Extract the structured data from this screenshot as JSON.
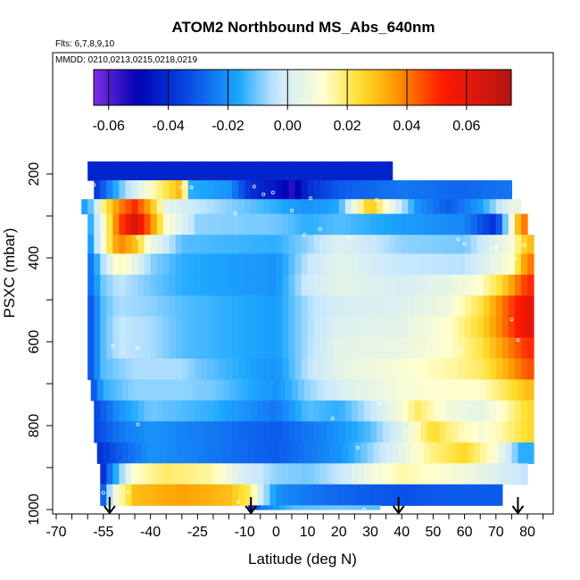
{
  "chart_data": {
    "type": "heatmap",
    "title": "ATOM2 Northbound MS_Abs_640nm",
    "subtitle_flights": "Flts: 6,7,8,9,10",
    "subtitle_dates": "MMDD: 0210,0213,0215,0218,0219",
    "xlabel": "Latitude (deg N)",
    "ylabel": "PSXC (mbar)",
    "x_ticks": [
      "-70",
      "-55",
      "-40",
      "-25",
      "-10",
      "0",
      "10",
      "20",
      "30",
      "40",
      "50",
      "60",
      "70",
      "80"
    ],
    "x_tick_values": [
      -70,
      -55,
      -40,
      -25,
      -10,
      0,
      10,
      20,
      30,
      40,
      50,
      60,
      70,
      80
    ],
    "y_ticks": [
      "200",
      "400",
      "600",
      "800",
      "1000"
    ],
    "y_tick_values": [
      200,
      400,
      600,
      800,
      1000
    ],
    "xlim": [
      -70,
      90
    ],
    "ylim": [
      1000,
      0
    ],
    "colorbar": {
      "range": [
        -0.065,
        0.075
      ],
      "tick_labels": [
        "-0.06",
        "-0.04",
        "-0.02",
        "0.00",
        "0.02",
        "0.04",
        "0.06"
      ],
      "tick_values": [
        -0.06,
        -0.04,
        -0.02,
        0.0,
        0.02,
        0.04,
        0.06
      ],
      "colors": [
        "#7b2ee0",
        "#0000b4",
        "#0a50e8",
        "#1ea8ff",
        "#c8e8ff",
        "#ffffd0",
        "#ffe030",
        "#ff9a00",
        "#ff1a00",
        "#b41414"
      ]
    },
    "layers": [
      {
        "p": [
          170,
          215
        ],
        "x": [
          -60,
          37
        ],
        "v": [
          [
            -60,
            -0.042
          ],
          [
            37,
            -0.042
          ]
        ]
      },
      {
        "p": [
          215,
          260
        ],
        "x": [
          -58,
          75
        ],
        "v": [
          [
            -58,
            -0.04
          ],
          [
            -50,
            -0.012
          ],
          [
            -40,
            0.012
          ],
          [
            -30,
            0.032
          ],
          [
            -27,
            -0.015
          ],
          [
            -15,
            -0.02
          ],
          [
            -8,
            -0.04
          ],
          [
            0,
            -0.045
          ],
          [
            5,
            -0.055
          ],
          [
            10,
            -0.04
          ],
          [
            20,
            -0.03
          ],
          [
            40,
            -0.025
          ],
          [
            60,
            -0.028
          ],
          [
            75,
            -0.025
          ]
        ]
      },
      {
        "p": [
          260,
          295
        ],
        "x": [
          -62,
          78
        ],
        "v": [
          [
            -62,
            -0.02
          ],
          [
            -58,
            -0.008
          ],
          [
            -55,
            0.018
          ],
          [
            -50,
            0.038
          ],
          [
            -45,
            0.05
          ],
          [
            -40,
            0.032
          ],
          [
            -35,
            0.005
          ],
          [
            -25,
            -0.004
          ],
          [
            0,
            -0.015
          ],
          [
            10,
            -0.02
          ],
          [
            20,
            -0.016
          ],
          [
            30,
            0.03
          ],
          [
            35,
            0.012
          ],
          [
            45,
            -0.02
          ],
          [
            55,
            -0.03
          ],
          [
            65,
            -0.018
          ],
          [
            75,
            0.005
          ],
          [
            78,
            0.005
          ]
        ]
      },
      {
        "p": [
          295,
          345
        ],
        "x": [
          -60,
          80
        ],
        "v": [
          [
            -60,
            -0.02
          ],
          [
            -55,
            0.008
          ],
          [
            -50,
            0.045
          ],
          [
            -45,
            0.065
          ],
          [
            -40,
            0.04
          ],
          [
            -35,
            0.012
          ],
          [
            -25,
            -0.008
          ],
          [
            0,
            -0.01
          ],
          [
            10,
            -0.015
          ],
          [
            20,
            -0.012
          ],
          [
            40,
            -0.018
          ],
          [
            60,
            -0.022
          ],
          [
            70,
            -0.04
          ],
          [
            78,
            0.04
          ]
        ]
      },
      {
        "p": [
          345,
          390
        ],
        "x": [
          -60,
          82
        ],
        "v": [
          [
            -60,
            -0.025
          ],
          [
            -55,
            0.01
          ],
          [
            -50,
            0.04
          ],
          [
            -45,
            0.03
          ],
          [
            -40,
            0.008
          ],
          [
            -30,
            -0.012
          ],
          [
            0,
            -0.015
          ],
          [
            10,
            -0.008
          ],
          [
            20,
            0.002
          ],
          [
            40,
            -0.008
          ],
          [
            60,
            -0.01
          ],
          [
            75,
            0.01
          ],
          [
            80,
            0.03
          ],
          [
            82,
            0.03
          ]
        ]
      },
      {
        "p": [
          390,
          440
        ],
        "x": [
          -60,
          82
        ],
        "v": [
          [
            -60,
            -0.03
          ],
          [
            -55,
            -0.005
          ],
          [
            -50,
            0.015
          ],
          [
            -45,
            0.005
          ],
          [
            -40,
            -0.008
          ],
          [
            -30,
            -0.015
          ],
          [
            0,
            -0.02
          ],
          [
            10,
            -0.004
          ],
          [
            20,
            0.004
          ],
          [
            40,
            -0.004
          ],
          [
            60,
            -0.005
          ],
          [
            75,
            0.012
          ],
          [
            80,
            0.04
          ],
          [
            82,
            0.04
          ]
        ]
      },
      {
        "p": [
          440,
          490
        ],
        "x": [
          -60,
          82
        ],
        "v": [
          [
            -60,
            -0.03
          ],
          [
            -55,
            -0.01
          ],
          [
            -50,
            -0.004
          ],
          [
            -40,
            -0.01
          ],
          [
            -30,
            -0.015
          ],
          [
            0,
            -0.02
          ],
          [
            10,
            -0.002
          ],
          [
            20,
            0.004
          ],
          [
            40,
            0.0
          ],
          [
            55,
            0.005
          ],
          [
            65,
            0.012
          ],
          [
            72,
            0.025
          ],
          [
            80,
            0.05
          ],
          [
            82,
            0.05
          ]
        ]
      },
      {
        "p": [
          490,
          540
        ],
        "x": [
          -60,
          82
        ],
        "v": [
          [
            -60,
            -0.035
          ],
          [
            -55,
            -0.012
          ],
          [
            -50,
            -0.006
          ],
          [
            -40,
            -0.008
          ],
          [
            -30,
            -0.012
          ],
          [
            0,
            -0.018
          ],
          [
            10,
            -0.006
          ],
          [
            20,
            0.0
          ],
          [
            40,
            0.002
          ],
          [
            55,
            0.008
          ],
          [
            65,
            0.022
          ],
          [
            72,
            0.04
          ],
          [
            80,
            0.06
          ],
          [
            82,
            0.06
          ]
        ]
      },
      {
        "p": [
          540,
          590
        ],
        "x": [
          -60,
          82
        ],
        "v": [
          [
            -60,
            -0.035
          ],
          [
            -55,
            -0.012
          ],
          [
            -50,
            -0.004
          ],
          [
            -40,
            -0.006
          ],
          [
            -30,
            -0.012
          ],
          [
            0,
            -0.018
          ],
          [
            10,
            -0.006
          ],
          [
            20,
            0.002
          ],
          [
            40,
            0.004
          ],
          [
            55,
            0.012
          ],
          [
            65,
            0.025
          ],
          [
            72,
            0.04
          ],
          [
            80,
            0.06
          ],
          [
            82,
            0.06
          ]
        ]
      },
      {
        "p": [
          590,
          640
        ],
        "x": [
          -60,
          82
        ],
        "v": [
          [
            -60,
            -0.035
          ],
          [
            -55,
            -0.012
          ],
          [
            -50,
            -0.004
          ],
          [
            -40,
            -0.006
          ],
          [
            -30,
            -0.012
          ],
          [
            0,
            -0.018
          ],
          [
            10,
            -0.006
          ],
          [
            20,
            0.004
          ],
          [
            40,
            0.006
          ],
          [
            55,
            0.012
          ],
          [
            65,
            0.022
          ],
          [
            72,
            0.035
          ],
          [
            80,
            0.05
          ],
          [
            82,
            0.05
          ]
        ]
      },
      {
        "p": [
          640,
          690
        ],
        "x": [
          -60,
          82
        ],
        "v": [
          [
            -60,
            -0.035
          ],
          [
            -55,
            -0.012
          ],
          [
            -45,
            -0.006
          ],
          [
            -30,
            -0.006
          ],
          [
            -25,
            -0.01
          ],
          [
            0,
            -0.02
          ],
          [
            10,
            -0.005
          ],
          [
            20,
            0.004
          ],
          [
            40,
            0.01
          ],
          [
            55,
            0.015
          ],
          [
            65,
            0.02
          ],
          [
            72,
            0.03
          ],
          [
            80,
            0.045
          ],
          [
            82,
            0.045
          ]
        ]
      },
      {
        "p": [
          690,
          740
        ],
        "x": [
          -59,
          82
        ],
        "v": [
          [
            -59,
            -0.035
          ],
          [
            -55,
            -0.015
          ],
          [
            -45,
            -0.008
          ],
          [
            -30,
            -0.008
          ],
          [
            -20,
            -0.01
          ],
          [
            0,
            -0.02
          ],
          [
            10,
            -0.008
          ],
          [
            20,
            0.0
          ],
          [
            40,
            0.01
          ],
          [
            55,
            0.012
          ],
          [
            65,
            0.012
          ],
          [
            72,
            0.02
          ],
          [
            80,
            0.03
          ],
          [
            82,
            0.03
          ]
        ]
      },
      {
        "p": [
          740,
          790
        ],
        "x": [
          -58,
          82
        ],
        "v": [
          [
            -58,
            -0.035
          ],
          [
            -50,
            -0.02
          ],
          [
            -40,
            -0.01
          ],
          [
            -20,
            -0.015
          ],
          [
            0,
            -0.025
          ],
          [
            10,
            -0.012
          ],
          [
            20,
            -0.015
          ],
          [
            30,
            -0.004
          ],
          [
            40,
            0.01
          ],
          [
            45,
            0.02
          ],
          [
            55,
            0.008
          ],
          [
            65,
            0.005
          ],
          [
            72,
            0.012
          ],
          [
            80,
            0.025
          ],
          [
            82,
            0.025
          ]
        ]
      },
      {
        "p": [
          790,
          840
        ],
        "x": [
          -58,
          82
        ],
        "v": [
          [
            -58,
            -0.035
          ],
          [
            -50,
            -0.025
          ],
          [
            -40,
            -0.02
          ],
          [
            -20,
            -0.025
          ],
          [
            0,
            -0.03
          ],
          [
            10,
            -0.025
          ],
          [
            20,
            -0.02
          ],
          [
            30,
            -0.012
          ],
          [
            40,
            0.002
          ],
          [
            50,
            0.025
          ],
          [
            55,
            0.018
          ],
          [
            65,
            0.01
          ],
          [
            72,
            0.015
          ],
          [
            80,
            0.025
          ],
          [
            82,
            0.025
          ]
        ]
      },
      {
        "p": [
          840,
          890
        ],
        "x": [
          -57,
          82
        ],
        "v": [
          [
            -57,
            -0.04
          ],
          [
            -50,
            -0.03
          ],
          [
            -40,
            -0.02
          ],
          [
            -20,
            -0.025
          ],
          [
            0,
            -0.03
          ],
          [
            10,
            -0.025
          ],
          [
            20,
            -0.02
          ],
          [
            30,
            -0.008
          ],
          [
            40,
            0.005
          ],
          [
            50,
            0.018
          ],
          [
            60,
            0.025
          ],
          [
            70,
            0.01
          ],
          [
            78,
            -0.015
          ],
          [
            82,
            -0.015
          ]
        ]
      },
      {
        "p": [
          890,
          940
        ],
        "x": [
          -56,
          80
        ],
        "v": [
          [
            -56,
            -0.045
          ],
          [
            -52,
            -0.02
          ],
          [
            -45,
            0.012
          ],
          [
            -35,
            0.02
          ],
          [
            -20,
            0.015
          ],
          [
            -10,
            0.0
          ],
          [
            0,
            -0.008
          ],
          [
            10,
            -0.01
          ],
          [
            20,
            -0.004
          ],
          [
            30,
            0.008
          ],
          [
            40,
            0.015
          ],
          [
            50,
            0.012
          ],
          [
            60,
            0.008
          ],
          [
            70,
            0.002
          ],
          [
            80,
            -0.005
          ]
        ]
      },
      {
        "p": [
          940,
          990
        ],
        "x": [
          -56,
          72
        ],
        "v": [
          [
            -56,
            -0.04
          ],
          [
            -52,
            0.005
          ],
          [
            -45,
            0.03
          ],
          [
            -30,
            0.035
          ],
          [
            -15,
            0.03
          ],
          [
            -8,
            0.02
          ],
          [
            -5,
            0.0
          ],
          [
            0,
            -0.02
          ],
          [
            10,
            -0.025
          ],
          [
            20,
            -0.028
          ],
          [
            30,
            -0.03
          ],
          [
            40,
            -0.032
          ],
          [
            55,
            -0.03
          ],
          [
            72,
            -0.03
          ]
        ]
      },
      {
        "p": [
          990,
          1000
        ],
        "x": [
          -9,
          33
        ],
        "v": [
          [
            -9,
            -0.045
          ],
          [
            -5,
            -0.025
          ],
          [
            5,
            -0.012
          ],
          [
            20,
            -0.01
          ],
          [
            33,
            -0.012
          ]
        ]
      }
    ],
    "arrows_lat": [
      -53,
      -8,
      39,
      77
    ],
    "markers": [
      [
        -58,
        226
      ],
      [
        -30,
        231
      ],
      [
        -4,
        248
      ],
      [
        -27,
        232
      ],
      [
        -7,
        230
      ],
      [
        -1,
        244
      ],
      [
        11,
        258
      ],
      [
        32,
        262
      ],
      [
        5,
        287
      ],
      [
        -13,
        294
      ],
      [
        14,
        331
      ],
      [
        9,
        345
      ],
      [
        -44,
        352
      ],
      [
        23,
        351
      ],
      [
        58,
        356
      ],
      [
        60,
        366
      ],
      [
        70,
        376
      ],
      [
        79,
        370
      ],
      [
        76,
        401
      ],
      [
        75,
        547
      ],
      [
        57,
        446
      ],
      [
        59,
        621
      ],
      [
        77,
        596
      ],
      [
        -52,
        610
      ],
      [
        -44,
        614
      ],
      [
        -44,
        797
      ],
      [
        -47,
        958
      ],
      [
        -12,
        982
      ],
      [
        33,
        749
      ],
      [
        18,
        783
      ],
      [
        42,
        813
      ],
      [
        59,
        824
      ],
      [
        26,
        853
      ],
      [
        -55,
        960
      ],
      [
        28,
        1000
      ]
    ]
  }
}
